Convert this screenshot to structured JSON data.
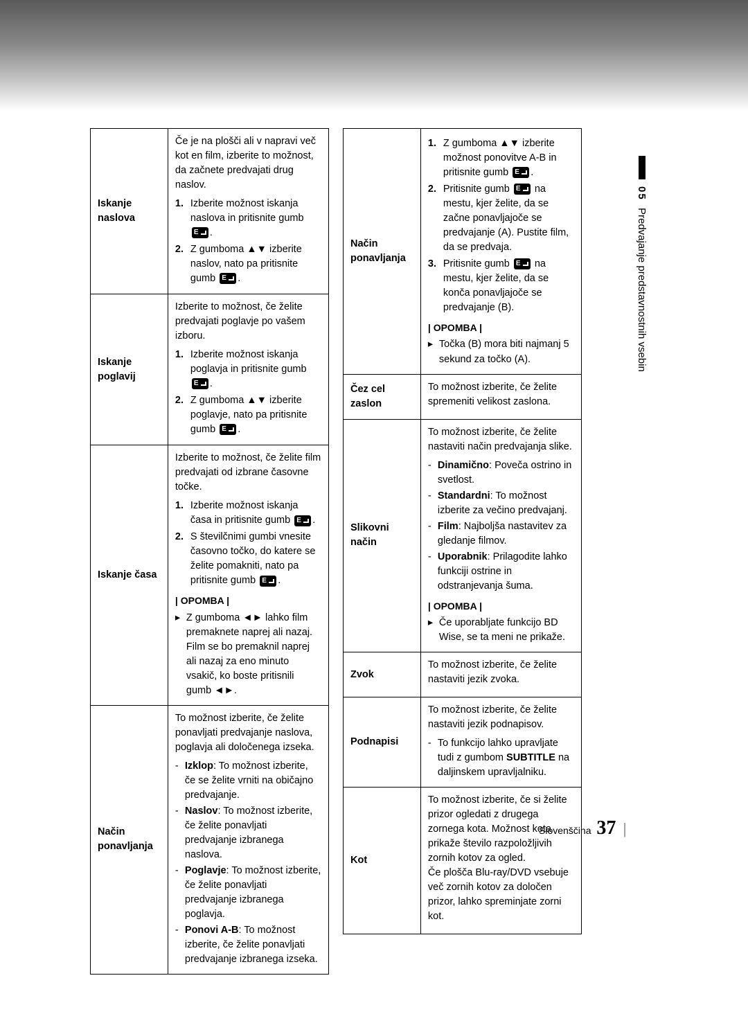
{
  "sideTab": {
    "number": "05",
    "title": "Predvajanje predstavnostnih vsebin"
  },
  "footer": {
    "lang": "Slovenščina",
    "page": "37"
  },
  "left": [
    {
      "label": "Iskanje naslova",
      "intro": "Če je na plošči ali v napravi več kot en film, izberite to možnost, da začnete predvajati drug naslov.",
      "steps": [
        {
          "n": "1.",
          "pre": "Izberite možnost iskanja naslova in pritisnite gumb ",
          "icon": true,
          "post": "."
        },
        {
          "n": "2.",
          "pre": "Z gumboma ▲▼ izberite naslov, nato pa pritisnite gumb ",
          "icon": true,
          "post": "."
        }
      ]
    },
    {
      "label": "Iskanje poglavij",
      "intro": "Izberite to možnost, če želite predvajati poglavje po vašem izboru.",
      "steps": [
        {
          "n": "1.",
          "pre": "Izberite možnost iskanja poglavja in pritisnite gumb ",
          "icon": true,
          "post": "."
        },
        {
          "n": "2.",
          "pre": "Z gumboma ▲▼ izberite poglavje, nato pa pritisnite gumb ",
          "icon": true,
          "post": "."
        }
      ]
    },
    {
      "label": "Iskanje časa",
      "intro": "Izberite to možnost, če želite film predvajati od izbrane časovne točke.",
      "steps": [
        {
          "n": "1.",
          "pre": "Izberite možnost iskanja časa in pritisnite gumb ",
          "icon": true,
          "post": "."
        },
        {
          "n": "2.",
          "pre": "S številčnimi gumbi vnesite časovno točko, do katere se želite pomakniti, nato pa pritisnite gumb ",
          "icon": true,
          "post": "."
        }
      ],
      "noteLabel": "| OPOMBA |",
      "notes": [
        "Z gumboma ◄► lahko film premaknete naprej ali nazaj. Film se bo premaknil naprej ali nazaj za eno minuto vsakič, ko boste pritisnili gumb ◄►."
      ]
    },
    {
      "label": "Način ponavljanja",
      "intro": "To možnost izberite, če želite ponavljati predvajanje naslova, poglavja ali določenega izseka.",
      "bullets": [
        {
          "b": "Izklop",
          "t": ": To možnost izberite, če se želite vrniti na običajno predvajanje."
        },
        {
          "b": "Naslov",
          "t": ": To možnost izberite, če želite ponavljati predvajanje izbranega naslova."
        },
        {
          "b": "Poglavje",
          "t": ": To možnost izberite, če želite ponavljati predvajanje izbranega poglavja."
        },
        {
          "b": "Ponovi A-B",
          "t": ": To možnost izberite, če želite ponavljati predvajanje izbranega izseka."
        }
      ]
    }
  ],
  "right": [
    {
      "label": "Način ponavljanja",
      "steps": [
        {
          "n": "1.",
          "pre": "Z gumboma ▲▼ izberite možnost ponovitve A-B in pritisnite gumb ",
          "icon": true,
          "post": "."
        },
        {
          "n": "2.",
          "pre": "Pritisnite gumb ",
          "icon": true,
          "post": " na mestu, kjer želite, da se začne ponavljajoče se predvajanje (A). Pustite film, da se predvaja."
        },
        {
          "n": "3.",
          "pre": "Pritisnite gumb ",
          "icon": true,
          "post": " na mestu, kjer želite, da se konča ponavljajoče se predvajanje (B)."
        }
      ],
      "noteLabel": "| OPOMBA |",
      "notes": [
        "Točka (B) mora biti najmanj 5 sekund za točko (A)."
      ]
    },
    {
      "label": "Čez cel zaslon",
      "intro": "To možnost izberite, če želite spremeniti velikost zaslona."
    },
    {
      "label": "Slikovni način",
      "intro": "To možnost izberite, če želite nastaviti način predvajanja slike.",
      "bullets": [
        {
          "b": "Dinamično",
          "t": ": Poveča ostrino in svetlost."
        },
        {
          "b": "Standardni",
          "t": ": To možnost izberite za večino predvajanj."
        },
        {
          "b": "Film",
          "t": ": Najboljša nastavitev za gledanje filmov."
        },
        {
          "b": "Uporabnik",
          "t": ": Prilagodite lahko funkciji ostrine in odstranjevanja šuma."
        }
      ],
      "noteLabel": "| OPOMBA |",
      "notes": [
        "Če uporabljate funkcijo BD Wise, se ta meni ne prikaže."
      ]
    },
    {
      "label": "Zvok",
      "intro": "To možnost izberite, če želite nastaviti jezik zvoka."
    },
    {
      "label": "Podnapisi",
      "intro": "To možnost izberite, če želite nastaviti jezik podnapisov.",
      "bullets": [
        {
          "b": "",
          "t": "To funkcijo lahko upravljate tudi z gumbom ",
          "b2": "SUBTITLE",
          "t2": " na daljinskem upravljalniku."
        }
      ]
    },
    {
      "label": "Kot",
      "intro": "To možnost izberite, če si želite prizor ogledati z drugega zornega kota. Možnost kota prikaže število razpoložljivih zornih kotov za ogled.\nČe plošča Blu-ray/DVD vsebuje več zornih kotov za določen prizor, lahko spreminjate zorni kot."
    }
  ]
}
